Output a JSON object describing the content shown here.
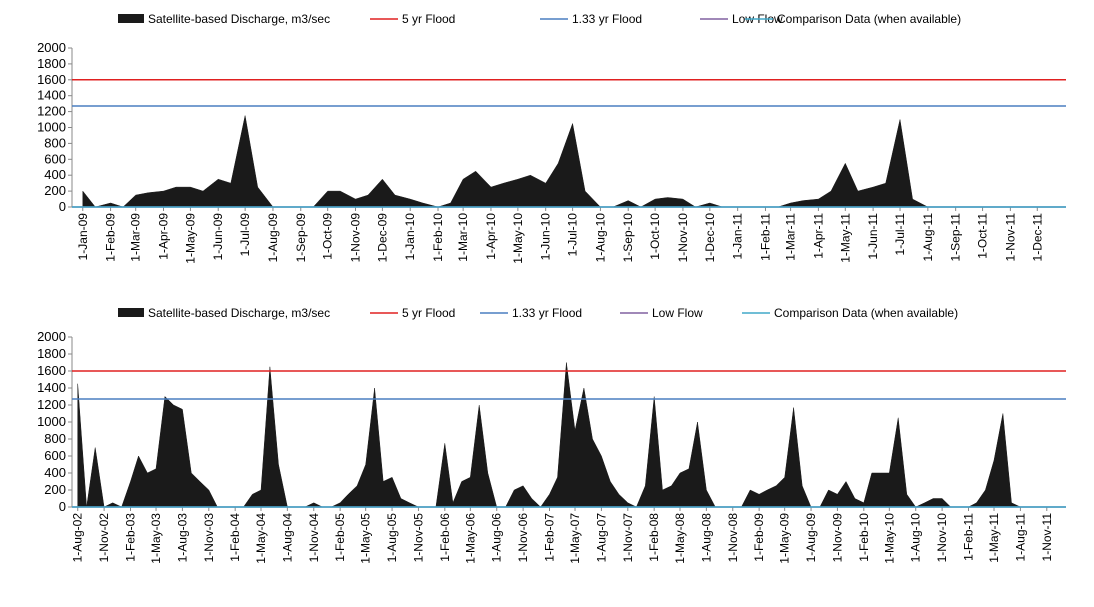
{
  "chart_data": [
    {
      "type": "area",
      "legend": "top",
      "x": [
        "2009-01-01",
        "2009-01-15",
        "2009-02-01",
        "2009-02-15",
        "2009-03-01",
        "2009-03-15",
        "2009-04-01",
        "2009-04-15",
        "2009-05-01",
        "2009-05-15",
        "2009-06-01",
        "2009-06-15",
        "2009-07-01",
        "2009-07-15",
        "2009-08-01",
        "2009-08-15",
        "2009-09-01",
        "2009-09-15",
        "2009-10-01",
        "2009-10-15",
        "2009-11-01",
        "2009-11-15",
        "2009-12-01",
        "2009-12-15",
        "2010-01-01",
        "2010-01-15",
        "2010-02-01",
        "2010-02-15",
        "2010-03-01",
        "2010-03-15",
        "2010-04-01",
        "2010-04-15",
        "2010-05-01",
        "2010-05-15",
        "2010-06-01",
        "2010-06-15",
        "2010-07-01",
        "2010-07-15",
        "2010-08-01",
        "2010-08-15",
        "2010-09-01",
        "2010-09-15",
        "2010-10-01",
        "2010-10-15",
        "2010-11-01",
        "2010-11-15",
        "2010-12-01",
        "2010-12-15",
        "2011-01-01",
        "2011-01-15",
        "2011-02-01",
        "2011-02-15",
        "2011-03-01",
        "2011-03-15",
        "2011-04-01",
        "2011-04-15",
        "2011-05-01",
        "2011-05-15",
        "2011-06-01",
        "2011-06-15",
        "2011-07-01",
        "2011-07-15",
        "2011-08-01",
        "2011-08-15",
        "2011-09-01",
        "2011-09-15",
        "2011-10-01",
        "2011-10-15",
        "2011-11-01",
        "2011-11-15",
        "2011-12-01",
        "2011-12-15"
      ],
      "series": [
        {
          "name": "Satellite-based Discharge, m3/sec",
          "color": "#1a1a1a",
          "values": [
            200,
            0,
            50,
            0,
            150,
            180,
            200,
            250,
            250,
            200,
            350,
            300,
            1150,
            250,
            0,
            0,
            0,
            0,
            200,
            200,
            100,
            150,
            350,
            150,
            100,
            50,
            0,
            50,
            350,
            450,
            250,
            300,
            350,
            400,
            300,
            550,
            1050,
            200,
            0,
            0,
            80,
            0,
            100,
            120,
            100,
            0,
            50,
            0,
            0,
            0,
            0,
            0,
            50,
            80,
            100,
            200,
            550,
            200,
            250,
            300,
            1100,
            100,
            0,
            0,
            0,
            0,
            0,
            0,
            0,
            0,
            0,
            0
          ]
        },
        {
          "name": "5 yr Flood",
          "color": "#e02020",
          "value": 1600
        },
        {
          "name": "1.33 yr Flood",
          "color": "#4a7ec0",
          "value": 1270
        },
        {
          "name": "Low Flow",
          "color": "#8060a0",
          "value": 0
        },
        {
          "name": "Comparison Data (when available)",
          "color": "#40a8c8",
          "value": 0
        }
      ],
      "xlim": [
        "2008-12-20",
        "2012-01-02"
      ],
      "xticks": [
        {
          "value": "2009-01-01",
          "label": "1-Jan-09"
        },
        {
          "value": "2009-02-01",
          "label": "1-Feb-09"
        },
        {
          "value": "2009-03-01",
          "label": "1-Mar-09"
        },
        {
          "value": "2009-04-01",
          "label": "1-Apr-09"
        },
        {
          "value": "2009-05-01",
          "label": "1-May-09"
        },
        {
          "value": "2009-06-01",
          "label": "1-Jun-09"
        },
        {
          "value": "2009-07-01",
          "label": "1-Jul-09"
        },
        {
          "value": "2009-08-01",
          "label": "1-Aug-09"
        },
        {
          "value": "2009-09-01",
          "label": "1-Sep-09"
        },
        {
          "value": "2009-10-01",
          "label": "1-Oct-09"
        },
        {
          "value": "2009-11-01",
          "label": "1-Nov-09"
        },
        {
          "value": "2009-12-01",
          "label": "1-Dec-09"
        },
        {
          "value": "2010-01-01",
          "label": "1-Jan-10"
        },
        {
          "value": "2010-02-01",
          "label": "1-Feb-10"
        },
        {
          "value": "2010-03-01",
          "label": "1-Mar-10"
        },
        {
          "value": "2010-04-01",
          "label": "1-Apr-10"
        },
        {
          "value": "2010-05-01",
          "label": "1-May-10"
        },
        {
          "value": "2010-06-01",
          "label": "1-Jun-10"
        },
        {
          "value": "2010-07-01",
          "label": "1-Jul-10"
        },
        {
          "value": "2010-08-01",
          "label": "1-Aug-10"
        },
        {
          "value": "2010-09-01",
          "label": "1-Sep-10"
        },
        {
          "value": "2010-10-01",
          "label": "1-Oct-10"
        },
        {
          "value": "2010-11-01",
          "label": "1-Nov-10"
        },
        {
          "value": "2010-12-01",
          "label": "1-Dec-10"
        },
        {
          "value": "2011-01-01",
          "label": "1-Jan-11"
        },
        {
          "value": "2011-02-01",
          "label": "1-Feb-11"
        },
        {
          "value": "2011-03-01",
          "label": "1-Mar-11"
        },
        {
          "value": "2011-04-01",
          "label": "1-Apr-11"
        },
        {
          "value": "2011-05-01",
          "label": "1-May-11"
        },
        {
          "value": "2011-06-01",
          "label": "1-Jun-11"
        },
        {
          "value": "2011-07-01",
          "label": "1-Jul-11"
        },
        {
          "value": "2011-08-01",
          "label": "1-Aug-11"
        },
        {
          "value": "2011-09-01",
          "label": "1-Sep-11"
        },
        {
          "value": "2011-10-01",
          "label": "1-Oct-11"
        },
        {
          "value": "2011-11-01",
          "label": "1-Nov-11"
        },
        {
          "value": "2011-12-01",
          "label": "1-Dec-11"
        }
      ],
      "ylim": [
        0,
        2000
      ],
      "yticks": [
        0,
        200,
        400,
        600,
        800,
        1000,
        1200,
        1400,
        1600,
        1800,
        2000
      ]
    },
    {
      "type": "area",
      "legend": "top",
      "x": [
        "2002-08-01",
        "2002-09-01",
        "2002-10-01",
        "2002-11-01",
        "2002-12-01",
        "2003-01-01",
        "2003-02-01",
        "2003-03-01",
        "2003-04-01",
        "2003-05-01",
        "2003-06-01",
        "2003-07-01",
        "2003-08-01",
        "2003-09-01",
        "2003-10-01",
        "2003-11-01",
        "2003-12-01",
        "2004-01-01",
        "2004-02-01",
        "2004-03-01",
        "2004-04-01",
        "2004-05-01",
        "2004-06-01",
        "2004-07-01",
        "2004-08-01",
        "2004-09-01",
        "2004-10-01",
        "2004-11-01",
        "2004-12-01",
        "2005-01-01",
        "2005-02-01",
        "2005-03-01",
        "2005-04-01",
        "2005-05-01",
        "2005-06-01",
        "2005-07-01",
        "2005-08-01",
        "2005-09-01",
        "2005-10-01",
        "2005-11-01",
        "2005-12-01",
        "2006-01-01",
        "2006-02-01",
        "2006-03-01",
        "2006-04-01",
        "2006-05-01",
        "2006-06-01",
        "2006-07-01",
        "2006-08-01",
        "2006-09-01",
        "2006-10-01",
        "2006-11-01",
        "2006-12-01",
        "2007-01-01",
        "2007-02-01",
        "2007-03-01",
        "2007-04-01",
        "2007-05-01",
        "2007-06-01",
        "2007-07-01",
        "2007-08-01",
        "2007-09-01",
        "2007-10-01",
        "2007-11-01",
        "2007-12-01",
        "2008-01-01",
        "2008-02-01",
        "2008-03-01",
        "2008-04-01",
        "2008-05-01",
        "2008-06-01",
        "2008-07-01",
        "2008-08-01",
        "2008-09-01",
        "2008-10-01",
        "2008-11-01",
        "2008-12-01",
        "2009-01-01",
        "2009-02-01",
        "2009-03-01",
        "2009-04-01",
        "2009-05-01",
        "2009-06-01",
        "2009-07-01",
        "2009-08-01",
        "2009-09-01",
        "2009-10-01",
        "2009-11-01",
        "2009-12-01",
        "2010-01-01",
        "2010-02-01",
        "2010-03-01",
        "2010-04-01",
        "2010-05-01",
        "2010-06-01",
        "2010-07-01",
        "2010-08-01",
        "2010-09-01",
        "2010-10-01",
        "2010-11-01",
        "2010-12-01",
        "2011-01-01",
        "2011-02-01",
        "2011-03-01",
        "2011-04-01",
        "2011-05-01",
        "2011-06-01",
        "2011-07-01",
        "2011-08-01",
        "2011-09-01",
        "2011-10-01",
        "2011-11-01",
        "2011-12-01"
      ],
      "series": [
        {
          "name": "Satellite-based Discharge, m3/sec",
          "color": "#1a1a1a",
          "values": [
            1450,
            0,
            700,
            0,
            50,
            0,
            300,
            600,
            400,
            450,
            1300,
            1200,
            1150,
            400,
            300,
            200,
            0,
            0,
            0,
            0,
            150,
            200,
            1650,
            500,
            0,
            0,
            0,
            50,
            0,
            0,
            50,
            150,
            250,
            500,
            1400,
            300,
            350,
            100,
            50,
            0,
            0,
            0,
            750,
            50,
            300,
            350,
            1200,
            400,
            0,
            0,
            200,
            250,
            100,
            0,
            150,
            350,
            1700,
            900,
            1400,
            800,
            600,
            300,
            150,
            50,
            0,
            250,
            1300,
            200,
            250,
            400,
            450,
            1000,
            200,
            0,
            0,
            0,
            0,
            200,
            150,
            200,
            250,
            350,
            1170,
            250,
            0,
            0,
            200,
            150,
            300,
            100,
            50,
            400,
            400,
            400,
            1050,
            150,
            0,
            50,
            100,
            100,
            0,
            0,
            0,
            50,
            200,
            550,
            1100,
            50,
            0,
            0,
            0,
            0,
            0
          ]
        },
        {
          "name": "5 yr Flood",
          "color": "#e02020",
          "value": 1600
        },
        {
          "name": "1.33 yr Flood",
          "color": "#4a7ec0",
          "value": 1270
        },
        {
          "name": "Low Flow",
          "color": "#8060a0",
          "value": 0
        },
        {
          "name": "Comparison Data (when available)",
          "color": "#40a8c8",
          "value": 0
        }
      ],
      "xlim": [
        "2002-07-12",
        "2012-01-07"
      ],
      "xticks": [
        {
          "value": "2002-08-01",
          "label": "1-Aug-02"
        },
        {
          "value": "2002-11-01",
          "label": "1-Nov-02"
        },
        {
          "value": "2003-02-01",
          "label": "1-Feb-03"
        },
        {
          "value": "2003-05-01",
          "label": "1-May-03"
        },
        {
          "value": "2003-08-01",
          "label": "1-Aug-03"
        },
        {
          "value": "2003-11-01",
          "label": "1-Nov-03"
        },
        {
          "value": "2004-02-01",
          "label": "1-Feb-04"
        },
        {
          "value": "2004-05-01",
          "label": "1-May-04"
        },
        {
          "value": "2004-08-01",
          "label": "1-Aug-04"
        },
        {
          "value": "2004-11-01",
          "label": "1-Nov-04"
        },
        {
          "value": "2005-02-01",
          "label": "1-Feb-05"
        },
        {
          "value": "2005-05-01",
          "label": "1-May-05"
        },
        {
          "value": "2005-08-01",
          "label": "1-Aug-05"
        },
        {
          "value": "2005-11-01",
          "label": "1-Nov-05"
        },
        {
          "value": "2006-02-01",
          "label": "1-Feb-06"
        },
        {
          "value": "2006-05-01",
          "label": "1-May-06"
        },
        {
          "value": "2006-08-01",
          "label": "1-Aug-06"
        },
        {
          "value": "2006-11-01",
          "label": "1-Nov-06"
        },
        {
          "value": "2007-02-01",
          "label": "1-Feb-07"
        },
        {
          "value": "2007-05-01",
          "label": "1-May-07"
        },
        {
          "value": "2007-08-01",
          "label": "1-Aug-07"
        },
        {
          "value": "2007-11-01",
          "label": "1-Nov-07"
        },
        {
          "value": "2008-02-01",
          "label": "1-Feb-08"
        },
        {
          "value": "2008-05-01",
          "label": "1-May-08"
        },
        {
          "value": "2008-08-01",
          "label": "1-Aug-08"
        },
        {
          "value": "2008-11-01",
          "label": "1-Nov-08"
        },
        {
          "value": "2009-02-01",
          "label": "1-Feb-09"
        },
        {
          "value": "2009-05-01",
          "label": "1-May-09"
        },
        {
          "value": "2009-08-01",
          "label": "1-Aug-09"
        },
        {
          "value": "2009-11-01",
          "label": "1-Nov-09"
        },
        {
          "value": "2010-02-01",
          "label": "1-Feb-10"
        },
        {
          "value": "2010-05-01",
          "label": "1-May-10"
        },
        {
          "value": "2010-08-01",
          "label": "1-Aug-10"
        },
        {
          "value": "2010-11-01",
          "label": "1-Nov-10"
        },
        {
          "value": "2011-02-01",
          "label": "1-Feb-11"
        },
        {
          "value": "2011-05-01",
          "label": "1-May-11"
        },
        {
          "value": "2011-08-01",
          "label": "1-Aug-11"
        },
        {
          "value": "2011-11-01",
          "label": "1-Nov-11"
        }
      ],
      "ylim": [
        0,
        2000
      ],
      "yticks": [
        0,
        200,
        400,
        600,
        800,
        1000,
        1200,
        1400,
        1600,
        1800,
        2000
      ]
    }
  ]
}
